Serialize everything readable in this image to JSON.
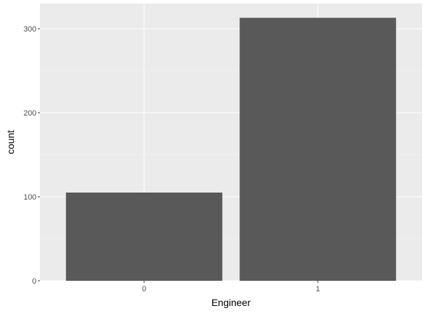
{
  "chart_data": {
    "type": "bar",
    "title": "",
    "xlabel": "Engineer",
    "ylabel": "count",
    "categories": [
      "0",
      "1"
    ],
    "values": [
      105,
      313
    ],
    "ylim": [
      0,
      330
    ],
    "yticks": [
      0,
      100,
      200,
      300
    ],
    "grid": true,
    "legend": "none",
    "colors": {
      "panel_background": "#ebebeb",
      "grid_major": "#ffffff",
      "grid_minor": "#f5f5f5",
      "bar_fill": "#595959",
      "tick_mark": "#333333"
    }
  }
}
